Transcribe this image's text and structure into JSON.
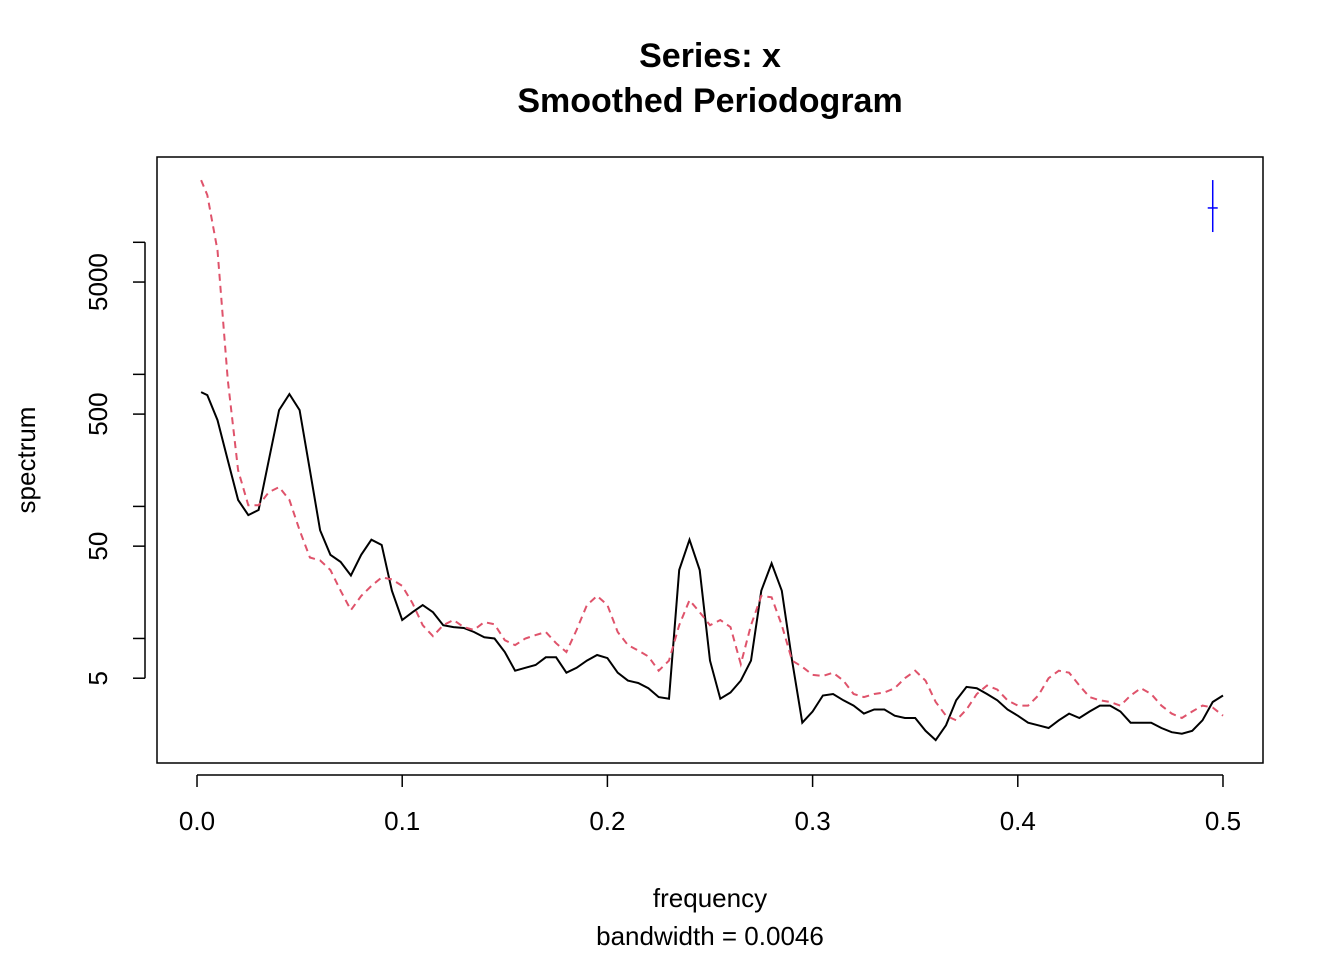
{
  "chart_data": {
    "type": "line",
    "title": "Series: x",
    "subtitle": "Smoothed Periodogram",
    "x_label": "frequency",
    "x_sublabel": "bandwidth = 0.0046",
    "y_label": "spectrum",
    "log_y": true,
    "xlim": [
      -0.0195,
      0.5195
    ],
    "ylim": [
      1.14,
      44250
    ],
    "xticks": [
      {
        "value": 0,
        "label": "0.0"
      },
      0.1,
      0.2,
      0.3,
      0.4,
      0.5
    ],
    "yticks": [
      5,
      50,
      500,
      5000
    ],
    "yticks_unlabeled": [
      10,
      100,
      1000,
      10000
    ],
    "x": [
      0.002,
      0.005,
      0.01,
      0.015,
      0.02,
      0.025,
      0.03,
      0.035,
      0.04,
      0.045,
      0.05,
      0.055,
      0.06,
      0.065,
      0.07,
      0.075,
      0.08,
      0.085,
      0.09,
      0.095,
      0.1,
      0.105,
      0.11,
      0.115,
      0.12,
      0.125,
      0.13,
      0.135,
      0.14,
      0.145,
      0.15,
      0.155,
      0.16,
      0.165,
      0.17,
      0.175,
      0.18,
      0.185,
      0.19,
      0.195,
      0.2,
      0.205,
      0.21,
      0.215,
      0.22,
      0.225,
      0.23,
      0.235,
      0.24,
      0.245,
      0.25,
      0.255,
      0.26,
      0.265,
      0.27,
      0.275,
      0.28,
      0.285,
      0.29,
      0.295,
      0.3,
      0.305,
      0.31,
      0.315,
      0.32,
      0.325,
      0.33,
      0.335,
      0.34,
      0.345,
      0.35,
      0.355,
      0.36,
      0.365,
      0.37,
      0.375,
      0.38,
      0.385,
      0.39,
      0.395,
      0.4,
      0.405,
      0.41,
      0.415,
      0.42,
      0.425,
      0.43,
      0.435,
      0.44,
      0.445,
      0.45,
      0.455,
      0.46,
      0.465,
      0.47,
      0.475,
      0.48,
      0.485,
      0.49,
      0.495,
      0.5
    ],
    "series": [
      {
        "color": "#000000",
        "dash": false,
        "values": [
          734,
          696,
          450,
          224,
          112,
          86,
          94,
          224,
          536,
          709,
          536,
          188,
          66,
          43,
          38,
          30,
          43,
          56,
          51,
          23,
          13.8,
          15.8,
          17.9,
          15.8,
          12.6,
          12.2,
          12.0,
          11.2,
          10.2,
          10.0,
          7.9,
          5.7,
          6.0,
          6.3,
          7.2,
          7.2,
          5.5,
          6.0,
          6.8,
          7.5,
          7.1,
          5.5,
          4.8,
          4.6,
          4.2,
          3.6,
          3.5,
          33,
          56,
          33,
          6.8,
          3.5,
          3.9,
          4.8,
          6.8,
          23,
          37,
          23,
          6.8,
          2.3,
          2.8,
          3.7,
          3.8,
          3.4,
          3.1,
          2.7,
          2.9,
          2.9,
          2.6,
          2.5,
          2.5,
          2.0,
          1.7,
          2.2,
          3.4,
          4.3,
          4.2,
          3.8,
          3.4,
          2.9,
          2.6,
          2.3,
          2.2,
          2.1,
          2.4,
          2.7,
          2.5,
          2.8,
          3.1,
          3.1,
          2.8,
          2.3,
          2.3,
          2.3,
          2.1,
          1.95,
          1.9,
          2.0,
          2.4,
          3.3,
          3.7
        ]
      },
      {
        "color": "#DF536B",
        "dash": true,
        "values": [
          29600,
          22800,
          8700,
          905,
          188,
          102,
          102,
          128,
          140,
          112,
          66,
          41,
          39,
          33,
          23,
          16.4,
          21,
          25,
          29,
          28,
          25,
          18.5,
          12.6,
          10.4,
          12.6,
          13.8,
          12.2,
          11.6,
          13.3,
          12.8,
          9.7,
          8.9,
          10.0,
          10.6,
          11.2,
          9.2,
          7.9,
          11.6,
          17.9,
          21,
          17.9,
          11.2,
          8.9,
          8.1,
          7.3,
          5.7,
          6.8,
          12.6,
          19.5,
          15.8,
          12.6,
          13.8,
          12.2,
          6.4,
          12.6,
          21,
          20.5,
          12.6,
          6.8,
          6.1,
          5.3,
          5.2,
          5.5,
          4.8,
          3.8,
          3.6,
          3.8,
          3.9,
          4.2,
          5.0,
          5.7,
          4.8,
          3.3,
          2.6,
          2.4,
          2.9,
          3.8,
          4.4,
          4.1,
          3.4,
          3.1,
          3.1,
          3.7,
          5.0,
          5.7,
          5.5,
          4.4,
          3.6,
          3.4,
          3.3,
          3.1,
          3.7,
          4.2,
          3.8,
          3.1,
          2.7,
          2.5,
          2.8,
          3.1,
          3.0,
          2.6
        ]
      }
    ],
    "ci_bar": {
      "x": 0.495,
      "center": 18200,
      "lower": 11960,
      "upper": 29600,
      "color": "#0000FF"
    }
  }
}
